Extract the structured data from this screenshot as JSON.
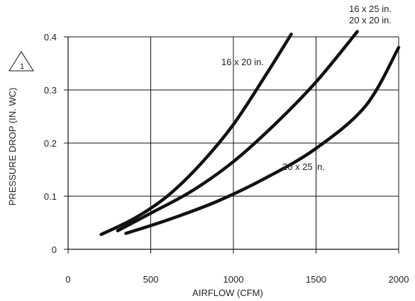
{
  "chart_data": {
    "type": "line",
    "xlabel": "AIRFLOW (CFM)",
    "ylabel": "PRESSURE DROP (IN. WC)",
    "xlim": [
      0,
      2000
    ],
    "ylim": [
      0,
      0.4
    ],
    "x_ticks": [
      "0",
      "500",
      "1000",
      "1500",
      "2000"
    ],
    "y_ticks": [
      "0",
      "0.1",
      "0.2",
      "0.3",
      "0.4"
    ],
    "grid": true,
    "note_marker": "1",
    "series": [
      {
        "name": "16 x 20 in.",
        "label_lines": [
          "16 x 20 in."
        ],
        "x": [
          200,
          400,
          600,
          800,
          1000,
          1200,
          1350
        ],
        "y": [
          0.028,
          0.058,
          0.1,
          0.16,
          0.235,
          0.33,
          0.405
        ]
      },
      {
        "name": "16 x 25 in. / 20 x 20 in.",
        "label_lines": [
          "16 x 25 in.",
          "20 x 20 in."
        ],
        "x": [
          300,
          500,
          750,
          1000,
          1250,
          1500,
          1750
        ],
        "y": [
          0.035,
          0.068,
          0.11,
          0.165,
          0.235,
          0.315,
          0.41
        ]
      },
      {
        "name": "20 x 25 in.",
        "label_lines": [
          "20 x 25 in."
        ],
        "x": [
          350,
          600,
          900,
          1200,
          1500,
          1800,
          2000
        ],
        "y": [
          0.03,
          0.055,
          0.09,
          0.135,
          0.19,
          0.27,
          0.38
        ]
      }
    ]
  }
}
